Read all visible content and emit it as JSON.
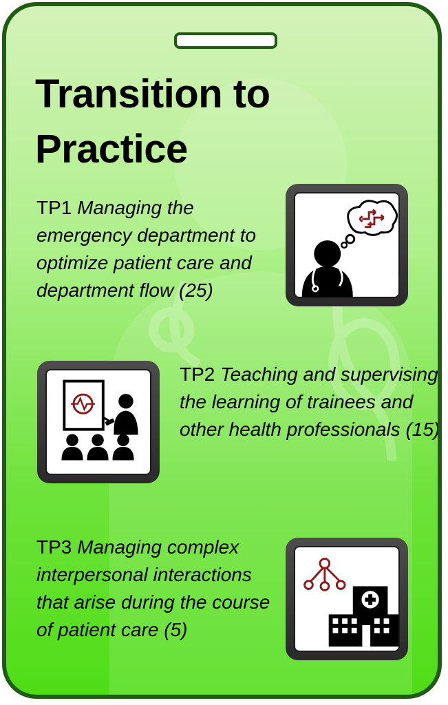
{
  "card": {
    "title_line1": "Transition to",
    "title_line2": "Practice"
  },
  "items": [
    {
      "code": "TP1",
      "description": "Managing the emergency department to optimize patient care and department flow",
      "count": "(25)",
      "icon": "doctor-thinking-flow-icon"
    },
    {
      "code": "TP2",
      "description": "Teaching and supervising the learning of trainees and other health professionals",
      "count": "(15)",
      "icon": "teaching-presentation-icon"
    },
    {
      "code": "TP3",
      "description": "Managing complex interpersonal interactions that arise during the course of patient care",
      "count": "(5)",
      "icon": "hospital-network-icon"
    }
  ],
  "colors": {
    "border": "#1f5c12",
    "gradient_top": "#d4f2b9",
    "gradient_bottom": "#4fdd16",
    "accent_red": "#8b1a1a"
  }
}
